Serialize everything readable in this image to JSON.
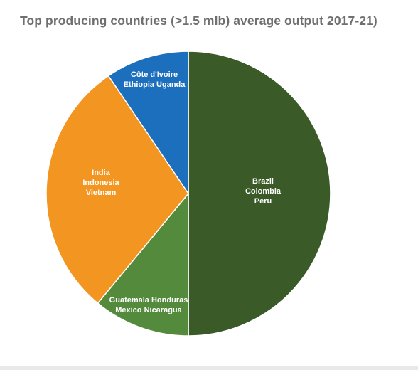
{
  "chart_data": {
    "type": "pie",
    "title": "Top producing countries (>1.5 mlb) average output 2017-21)",
    "start_angle_deg": 0,
    "direction": "clockwise",
    "slices": [
      {
        "label_lines": [
          "Brazil",
          "Colombia",
          "Peru"
        ],
        "value": 50.0,
        "color": "#3a5a28",
        "label_color": "#ffffff"
      },
      {
        "label_lines": [
          "Guatemala Honduras",
          "Mexico Nicaragua"
        ],
        "value": 11.0,
        "color": "#548a3c",
        "label_color": "#ffffff"
      },
      {
        "label_lines": [
          "India",
          "Indonesia",
          "Vietnam"
        ],
        "value": 29.5,
        "color": "#f39521",
        "label_color": "#ffffff"
      },
      {
        "label_lines": [
          "Côte d'Ivoire",
          "Ethiopia Uganda"
        ],
        "value": 9.5,
        "color": "#1c6fbd",
        "label_color": "#ffffff"
      }
    ]
  }
}
